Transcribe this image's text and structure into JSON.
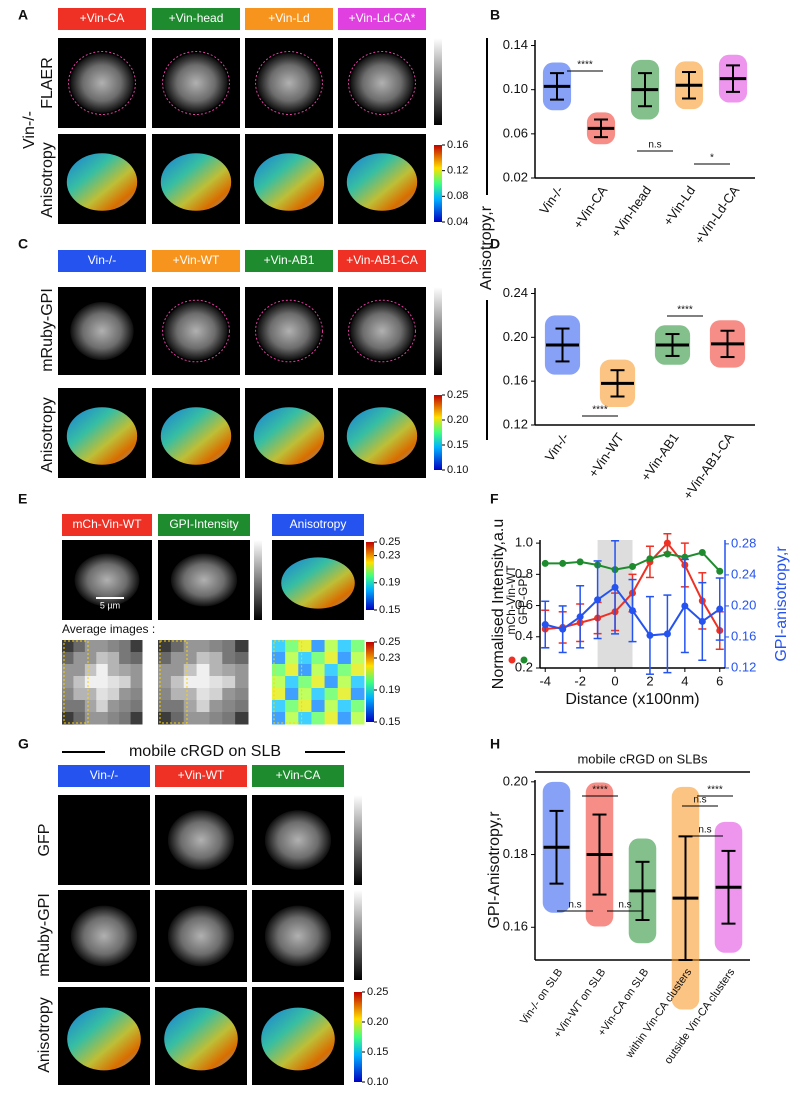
{
  "panels": {
    "A": {
      "letter": "A",
      "headers": [
        "+Vin-CA",
        "+Vin-head",
        "+Vin-Ld",
        "+Vin-Ld-CA*"
      ],
      "header_colors": [
        "#ee3124",
        "#1e8c2e",
        "#f7941d",
        "#e040e0"
      ],
      "group_label": "Vin-/-",
      "rows": [
        "FLAER",
        "Anisotropy"
      ],
      "colorbar_ticks": [
        0.16,
        0.12,
        0.08,
        0.04
      ]
    },
    "C": {
      "letter": "C",
      "headers": [
        "Vin-/-",
        "+Vin-WT",
        "+Vin-AB1",
        "+Vin-AB1-CA"
      ],
      "header_colors": [
        "#2453f0",
        "#f7941d",
        "#1e8c2e",
        "#ee3124"
      ],
      "rows": [
        "mRuby-GPI",
        "Anisotropy"
      ],
      "colorbar_ticks": [
        0.25,
        {
          "value": 0.2,
          "label": "0.20"
        },
        0.15,
        {
          "value": 0.1,
          "label": "0.10"
        }
      ]
    },
    "E": {
      "letter": "E",
      "headers": [
        "mCh-Vin-WT",
        "GPI-Intensity",
        "Anisotropy"
      ],
      "header_colors": [
        "#ee3124",
        "#1e8c2e",
        "#2453f0"
      ],
      "scale_label": "5 µm",
      "average_label": "Average images :",
      "colorbar_ticks": [
        0.25,
        0.23,
        0.19,
        0.15
      ],
      "colorbar2_ticks": [
        0.25,
        0.23,
        0.19,
        0.15
      ]
    },
    "G": {
      "letter": "G",
      "title": "mobile cRGD on SLB",
      "headers": [
        "Vin-/-",
        "+Vin-WT",
        "+Vin-CA"
      ],
      "header_colors": [
        "#2453f0",
        "#ee3124",
        "#1e8c2e"
      ],
      "rows": [
        "GFP",
        "mRuby-GPI",
        "Anisotropy"
      ],
      "colorbar_ticks": [
        0.25,
        {
          "value": 0.2,
          "label": "0.20"
        },
        0.15,
        {
          "value": 0.1,
          "label": "0.10"
        }
      ]
    },
    "shared_ylabel": "Anisotropy,r"
  },
  "chart_data": [
    {
      "type": "dot",
      "letter": "B",
      "categories": [
        "Vin-/-",
        "+Vin-CA",
        "+Vin-head",
        "+Vin-Ld",
        "+Vin-Ld-CA"
      ],
      "values": [
        0.103,
        0.065,
        0.1,
        0.104,
        0.11
      ],
      "errors": [
        0.012,
        0.008,
        0.015,
        0.012,
        0.012
      ],
      "colors": [
        "#2453f0",
        "#ee3124",
        "#1e8c2e",
        "#f7941d",
        "#e040e0"
      ],
      "ylim": [
        0.02,
        0.145
      ],
      "yticks": [
        0.02,
        0.06,
        {
          "value": 0.1,
          "label": "0.10"
        },
        0.14
      ],
      "annotations": [
        "****",
        "n.s",
        "*"
      ]
    },
    {
      "type": "dot",
      "letter": "D",
      "categories": [
        "Vin-/-",
        "+Vin-WT",
        "+Vin-AB1",
        "+Vin-AB1-CA"
      ],
      "values": [
        0.193,
        0.158,
        0.193,
        0.194
      ],
      "errors": [
        0.015,
        0.012,
        0.01,
        0.012
      ],
      "colors": [
        "#2453f0",
        "#f7941d",
        "#1e8c2e",
        "#ee3124"
      ],
      "ylim": [
        0.12,
        0.245
      ],
      "yticks": [
        0.12,
        0.16,
        {
          "value": 0.2,
          "label": "0.20"
        },
        0.24
      ],
      "annotations": [
        "****",
        "****"
      ]
    },
    {
      "type": "line",
      "letter": "F",
      "xlabel": "Distance (x100nm)",
      "ylabel": "Normalised Intensity,a.u",
      "y2label": "GPI-anisotropy,r",
      "x": [
        -4,
        -3,
        -2,
        -1,
        0,
        1,
        2,
        3,
        4,
        5,
        6
      ],
      "xlim": [
        -4.3,
        6.3
      ],
      "xticks": [
        -4,
        -2,
        0,
        2,
        4,
        6
      ],
      "ylim": [
        0.2,
        1.02
      ],
      "yticks": [
        0.2,
        0.4,
        0.6,
        0.8,
        {
          "value": 1,
          "label": "1.0"
        }
      ],
      "y2lim": [
        0.12,
        0.285
      ],
      "y2ticks": [
        0.12,
        0.16,
        {
          "value": 0.2,
          "label": "0.20"
        },
        0.24,
        0.28
      ],
      "shade_x": [
        -1,
        1
      ],
      "series": [
        {
          "name": "mCh-Vin-WT",
          "color": "#ee3124",
          "values": [
            0.45,
            0.46,
            0.49,
            0.52,
            0.56,
            0.68,
            0.88,
            1,
            0.86,
            0.63,
            0.44
          ],
          "errors": [
            0.12,
            0.1,
            0.12,
            0.1,
            0.12,
            0.12,
            0.1,
            0.06,
            0.14,
            0.18,
            0.12
          ]
        },
        {
          "name": "GFP-GPI",
          "color": "#1e8c2e",
          "values": [
            0.87,
            0.87,
            0.88,
            0.86,
            0.83,
            0.85,
            0.9,
            0.93,
            0.91,
            0.94,
            0.82
          ]
        },
        {
          "color": "#2453f0",
          "axis": "y2",
          "values": [
            0.176,
            0.17,
            0.186,
            0.208,
            0.224,
            0.194,
            0.162,
            0.164,
            0.2,
            0.18,
            0.196
          ],
          "errors": [
            0.03,
            0.03,
            0.04,
            0.05,
            0.06,
            0.04,
            0.05,
            0.05,
            0.06,
            0.05,
            0.04
          ]
        }
      ]
    },
    {
      "type": "dot",
      "letter": "H",
      "title": "mobile cRGD on SLBs",
      "ylabel": "GPI-Anisotropy,r",
      "categories": [
        "Vin-/- on SLB",
        "+Vin-WT on SLB",
        "+Vin-CA on SLB",
        "within Vin-CA clusters",
        "outside Vin-CA clusters"
      ],
      "values": [
        0.182,
        0.18,
        0.17,
        0.168,
        0.171
      ],
      "errors": [
        0.01,
        0.011,
        0.008,
        0.017,
        0.01
      ],
      "colors": [
        "#2453f0",
        "#ee3124",
        "#1e8c2e",
        "#f7941d",
        "#e040e0"
      ],
      "ylim": [
        0.151,
        0.2005
      ],
      "yticks": [
        0.16,
        0.18,
        {
          "value": 0.2,
          "label": "0.20"
        }
      ],
      "annotations": [
        "****",
        "n.s",
        "n.s",
        "n.s",
        "n.s",
        "****"
      ]
    }
  ]
}
